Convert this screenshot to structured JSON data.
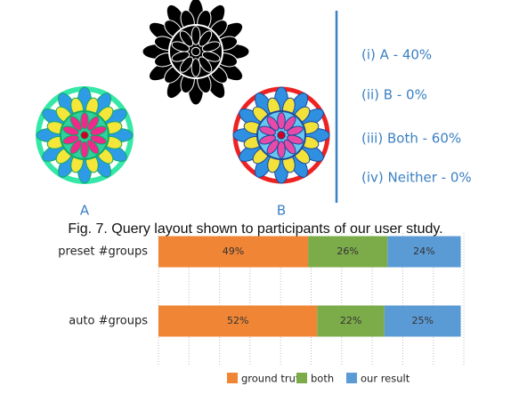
{
  "figure": {
    "labels": [
      "A",
      "B"
    ],
    "options": [
      "(i)  A - 40%",
      "(ii)  B - 0%",
      "(iii) Both - 60%",
      "(iv) Neither - 0%"
    ],
    "caption": "Fig. 7.  Query layout shown to participants of our user study."
  },
  "chart_data": {
    "type": "stacked-barh",
    "categories": [
      "preset #groups",
      "auto #groups"
    ],
    "series": [
      {
        "name": "ground truth",
        "color": "#ef8535",
        "values": [
          49,
          52
        ],
        "value_labels": [
          "49%",
          "52%"
        ]
      },
      {
        "name": "both",
        "color": "#7cab4a",
        "values": [
          26,
          22
        ],
        "value_labels": [
          "26%",
          "22%"
        ]
      },
      {
        "name": "our result",
        "color": "#5b9bd5",
        "values": [
          24,
          25
        ],
        "value_labels": [
          "24%",
          "25%"
        ]
      }
    ],
    "xlim": [
      0,
      100
    ],
    "xticks": [
      0,
      10,
      20,
      30,
      40,
      50,
      60,
      70,
      80,
      90,
      100
    ],
    "grid": true,
    "legend": "bottom"
  }
}
